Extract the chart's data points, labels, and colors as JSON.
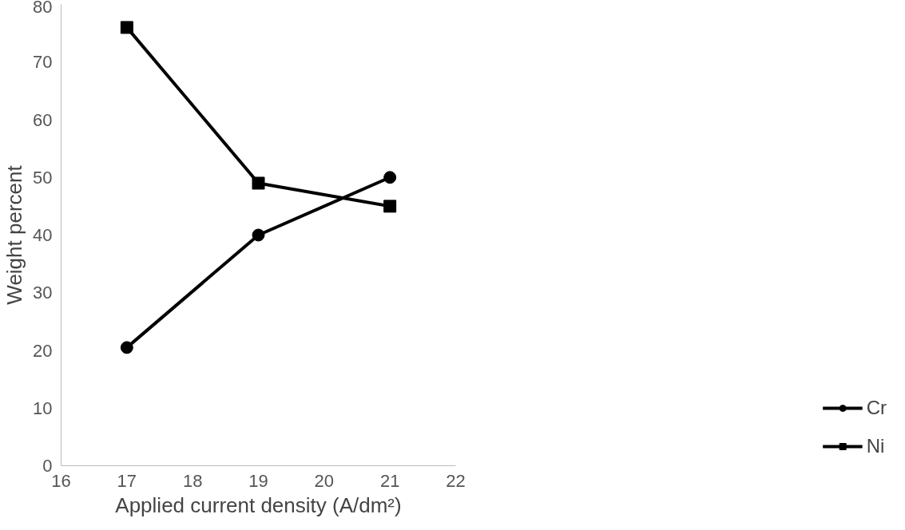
{
  "chart_data": {
    "type": "line",
    "xlabel": "Applied current density (A/dm²)",
    "ylabel": "Weight percent",
    "x": [
      17,
      19,
      21
    ],
    "series": [
      {
        "name": "Cr",
        "color": "#000000",
        "values": [
          20.5,
          40,
          50
        ],
        "marker": "circle"
      },
      {
        "name": "Ni",
        "color": "#000000",
        "values": [
          76,
          49,
          45
        ],
        "marker": "square"
      }
    ],
    "xlim": [
      16,
      22
    ],
    "xticks": [
      16,
      17,
      18,
      19,
      20,
      21,
      22
    ],
    "ylim": [
      0,
      80
    ],
    "yticks": [
      0,
      10,
      20,
      30,
      40,
      50,
      60,
      70,
      80
    ],
    "grid": false,
    "legend": "right",
    "line_style": "solid"
  }
}
